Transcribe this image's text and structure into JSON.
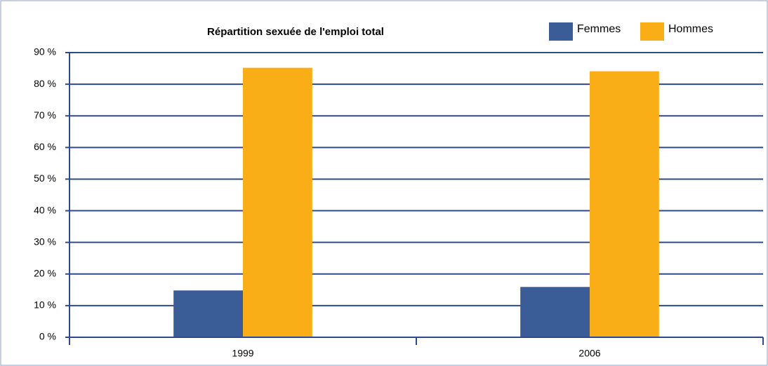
{
  "chart_data": {
    "type": "bar",
    "title": "Répartition sexuée de l'emploi total",
    "categories": [
      "1999",
      "2006"
    ],
    "series": [
      {
        "name": "Femmes",
        "color": "#3a5d98",
        "values": [
          14.8,
          15.9
        ]
      },
      {
        "name": "Hommes",
        "color": "#f9ae17",
        "values": [
          85.2,
          84.1
        ]
      }
    ],
    "ylim": [
      0,
      90
    ],
    "yticks": [
      {
        "value": 0,
        "label": "0 %"
      },
      {
        "value": 10,
        "label": "10 %"
      },
      {
        "value": 20,
        "label": "20 %"
      },
      {
        "value": 30,
        "label": "30 %"
      },
      {
        "value": 40,
        "label": "40 %"
      },
      {
        "value": 50,
        "label": "50 %"
      },
      {
        "value": 60,
        "label": "60 %"
      },
      {
        "value": 70,
        "label": "70 %"
      },
      {
        "value": 80,
        "label": "80 %"
      },
      {
        "value": 90,
        "label": "90 %"
      }
    ],
    "grid": true,
    "legend": "top-right"
  }
}
